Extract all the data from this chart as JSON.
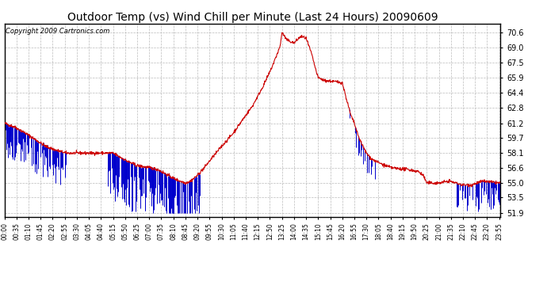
{
  "title": "Outdoor Temp (vs) Wind Chill per Minute (Last 24 Hours) 20090609",
  "copyright": "Copyright 2009 Cartronics.com",
  "y_ticks": [
    51.9,
    53.5,
    55.0,
    56.6,
    58.1,
    59.7,
    61.2,
    62.8,
    64.4,
    65.9,
    67.5,
    69.0,
    70.6
  ],
  "ylim": [
    51.5,
    71.5
  ],
  "x_labels": [
    "00:00",
    "00:35",
    "01:10",
    "01:45",
    "02:20",
    "02:55",
    "03:30",
    "04:05",
    "04:40",
    "05:15",
    "05:50",
    "06:25",
    "07:00",
    "07:35",
    "08:10",
    "08:45",
    "09:20",
    "09:55",
    "10:30",
    "11:05",
    "11:40",
    "12:15",
    "12:50",
    "13:25",
    "14:00",
    "14:35",
    "15:10",
    "15:45",
    "16:20",
    "16:55",
    "17:30",
    "18:05",
    "18:40",
    "19:15",
    "19:50",
    "20:25",
    "21:00",
    "21:35",
    "22:10",
    "22:45",
    "23:20",
    "23:55"
  ],
  "background_color": "#ffffff",
  "plot_bg_color": "#ffffff",
  "grid_color": "#bbbbbb",
  "red_line_color": "#cc0000",
  "blue_bar_color": "#0000cc",
  "title_fontsize": 11,
  "copyright_fontsize": 7
}
